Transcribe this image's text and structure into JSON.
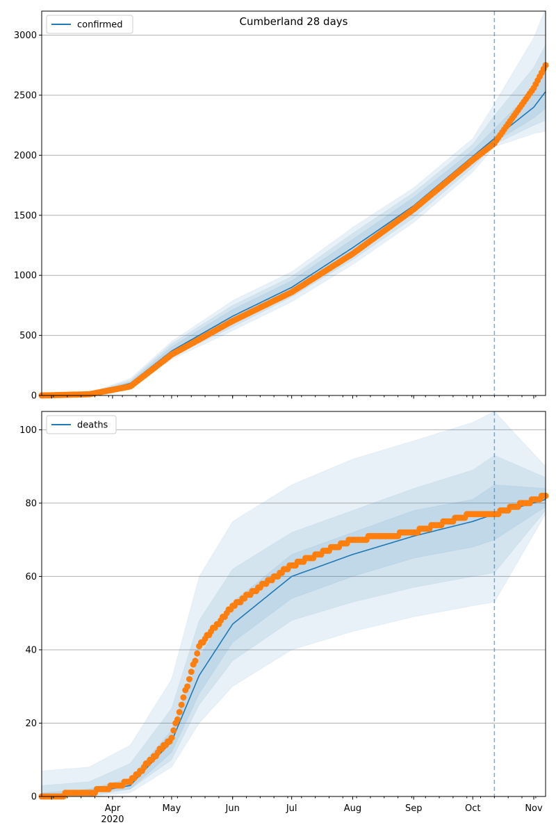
{
  "chart_data": [
    {
      "type": "line",
      "title": "Cumberland 28 days",
      "legend": {
        "label": "confirmed",
        "placement": "top-left"
      },
      "ylim": [
        0,
        3200
      ],
      "yticks": [
        0,
        500,
        1000,
        1500,
        2000,
        2500,
        3000
      ],
      "grid": "horizontal",
      "forecast_start": "2020-10-12",
      "x": [
        "2020-02-25",
        "2020-03-20",
        "2020-04-10",
        "2020-05-01",
        "2020-06-01",
        "2020-07-01",
        "2020-08-01",
        "2020-09-01",
        "2020-10-01",
        "2020-10-12",
        "2020-11-01",
        "2020-11-07"
      ],
      "series": [
        {
          "name": "confirmed",
          "kind": "model",
          "color": "#1f77b4",
          "values": [
            0,
            15,
            100,
            370,
            660,
            900,
            1230,
            1580,
            1990,
            2140,
            2400,
            2530
          ]
        },
        {
          "kind": "observed",
          "color": "#ff7f0e",
          "values": [
            0,
            10,
            75,
            340,
            620,
            860,
            1180,
            1550,
            1960,
            2100,
            2560,
            2750
          ]
        }
      ],
      "bands": [
        {
          "lower": [
            0,
            8,
            70,
            300,
            540,
            780,
            1090,
            1440,
            1860,
            2070,
            2180,
            2200
          ],
          "upper": [
            0,
            22,
            140,
            450,
            790,
            1030,
            1400,
            1730,
            2140,
            2430,
            2980,
            3220
          ]
        },
        {
          "lower": [
            0,
            10,
            80,
            320,
            570,
            820,
            1130,
            1480,
            1900,
            2090,
            2250,
            2290
          ],
          "upper": [
            0,
            20,
            125,
            430,
            750,
            990,
            1350,
            1690,
            2090,
            2330,
            2730,
            2920
          ]
        },
        {
          "lower": [
            0,
            12,
            88,
            340,
            600,
            850,
            1170,
            1520,
            1940,
            2110,
            2310,
            2390
          ],
          "upper": [
            0,
            18,
            112,
            405,
            715,
            955,
            1300,
            1650,
            2040,
            2220,
            2550,
            2710
          ]
        }
      ]
    },
    {
      "type": "line",
      "legend": {
        "label": "deaths",
        "placement": "top-left"
      },
      "ylim": [
        0,
        105
      ],
      "yticks": [
        0,
        20,
        40,
        60,
        80,
        100
      ],
      "xticks": [
        "Apr",
        "May",
        "Jun",
        "Jul",
        "Aug",
        "Sep",
        "Oct",
        "Nov"
      ],
      "xtick_year": "2020",
      "grid": "horizontal",
      "forecast_start": "2020-10-12",
      "x": [
        "2020-02-25",
        "2020-03-20",
        "2020-04-10",
        "2020-05-01",
        "2020-05-15",
        "2020-06-01",
        "2020-07-01",
        "2020-08-01",
        "2020-09-01",
        "2020-10-01",
        "2020-10-12",
        "2020-11-07"
      ],
      "series": [
        {
          "name": "deaths",
          "kind": "model",
          "color": "#1f77b4",
          "values": [
            0,
            1,
            3,
            15,
            33,
            47,
            60,
            66,
            71,
            75,
            77,
            81
          ]
        },
        {
          "kind": "observed",
          "color": "#ff7f0e",
          "values": [
            0,
            1,
            4,
            16,
            41,
            52,
            63,
            70,
            72,
            77,
            77,
            82
          ]
        }
      ],
      "bands": [
        {
          "lower": [
            0,
            0,
            1,
            8,
            20,
            30,
            40,
            45,
            49,
            52,
            53,
            77
          ],
          "upper": [
            7,
            8,
            14,
            32,
            60,
            75,
            85,
            92,
            97,
            102,
            105,
            90
          ]
        },
        {
          "lower": [
            0,
            0,
            2,
            10,
            25,
            37,
            48,
            53,
            57,
            60,
            61,
            78
          ],
          "upper": [
            3,
            4,
            9,
            24,
            48,
            62,
            72,
            78,
            84,
            89,
            93,
            87
          ]
        },
        {
          "lower": [
            0,
            1,
            2,
            12,
            28,
            42,
            54,
            60,
            65,
            68,
            70,
            79
          ],
          "upper": [
            1,
            2,
            5,
            18,
            38,
            53,
            66,
            72,
            78,
            81,
            85,
            84
          ]
        }
      ]
    }
  ]
}
